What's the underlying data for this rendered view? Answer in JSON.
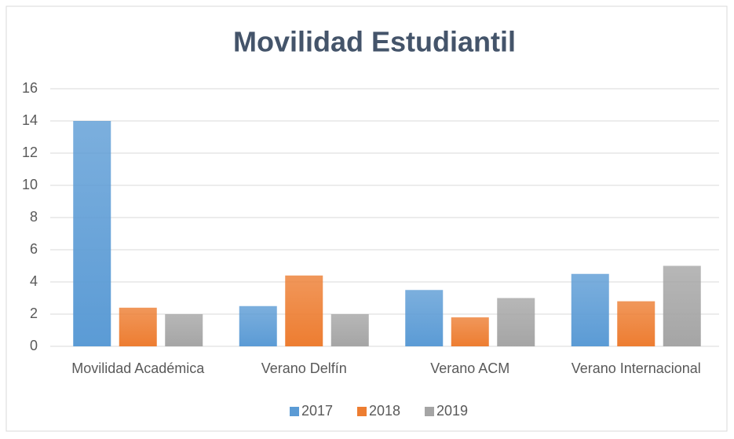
{
  "chart_data": {
    "type": "bar",
    "title": "Movilidad Estudiantil",
    "categories": [
      "Movilidad Académica",
      "Verano Delfín",
      "Verano ACM",
      "Verano Internacional"
    ],
    "series": [
      {
        "name": "2017",
        "color": "#5b9bd5",
        "values": [
          14,
          2.5,
          3.5,
          4.5
        ]
      },
      {
        "name": "2018",
        "color": "#ed7d31",
        "values": [
          2.4,
          4.4,
          1.8,
          2.8
        ]
      },
      {
        "name": "2019",
        "color": "#a5a5a5",
        "values": [
          2,
          2,
          3,
          5
        ]
      }
    ],
    "ylim": [
      0,
      16
    ],
    "yticks": [
      0,
      2,
      4,
      6,
      8,
      10,
      12,
      14,
      16
    ],
    "grid": true,
    "legend": "bottom"
  }
}
